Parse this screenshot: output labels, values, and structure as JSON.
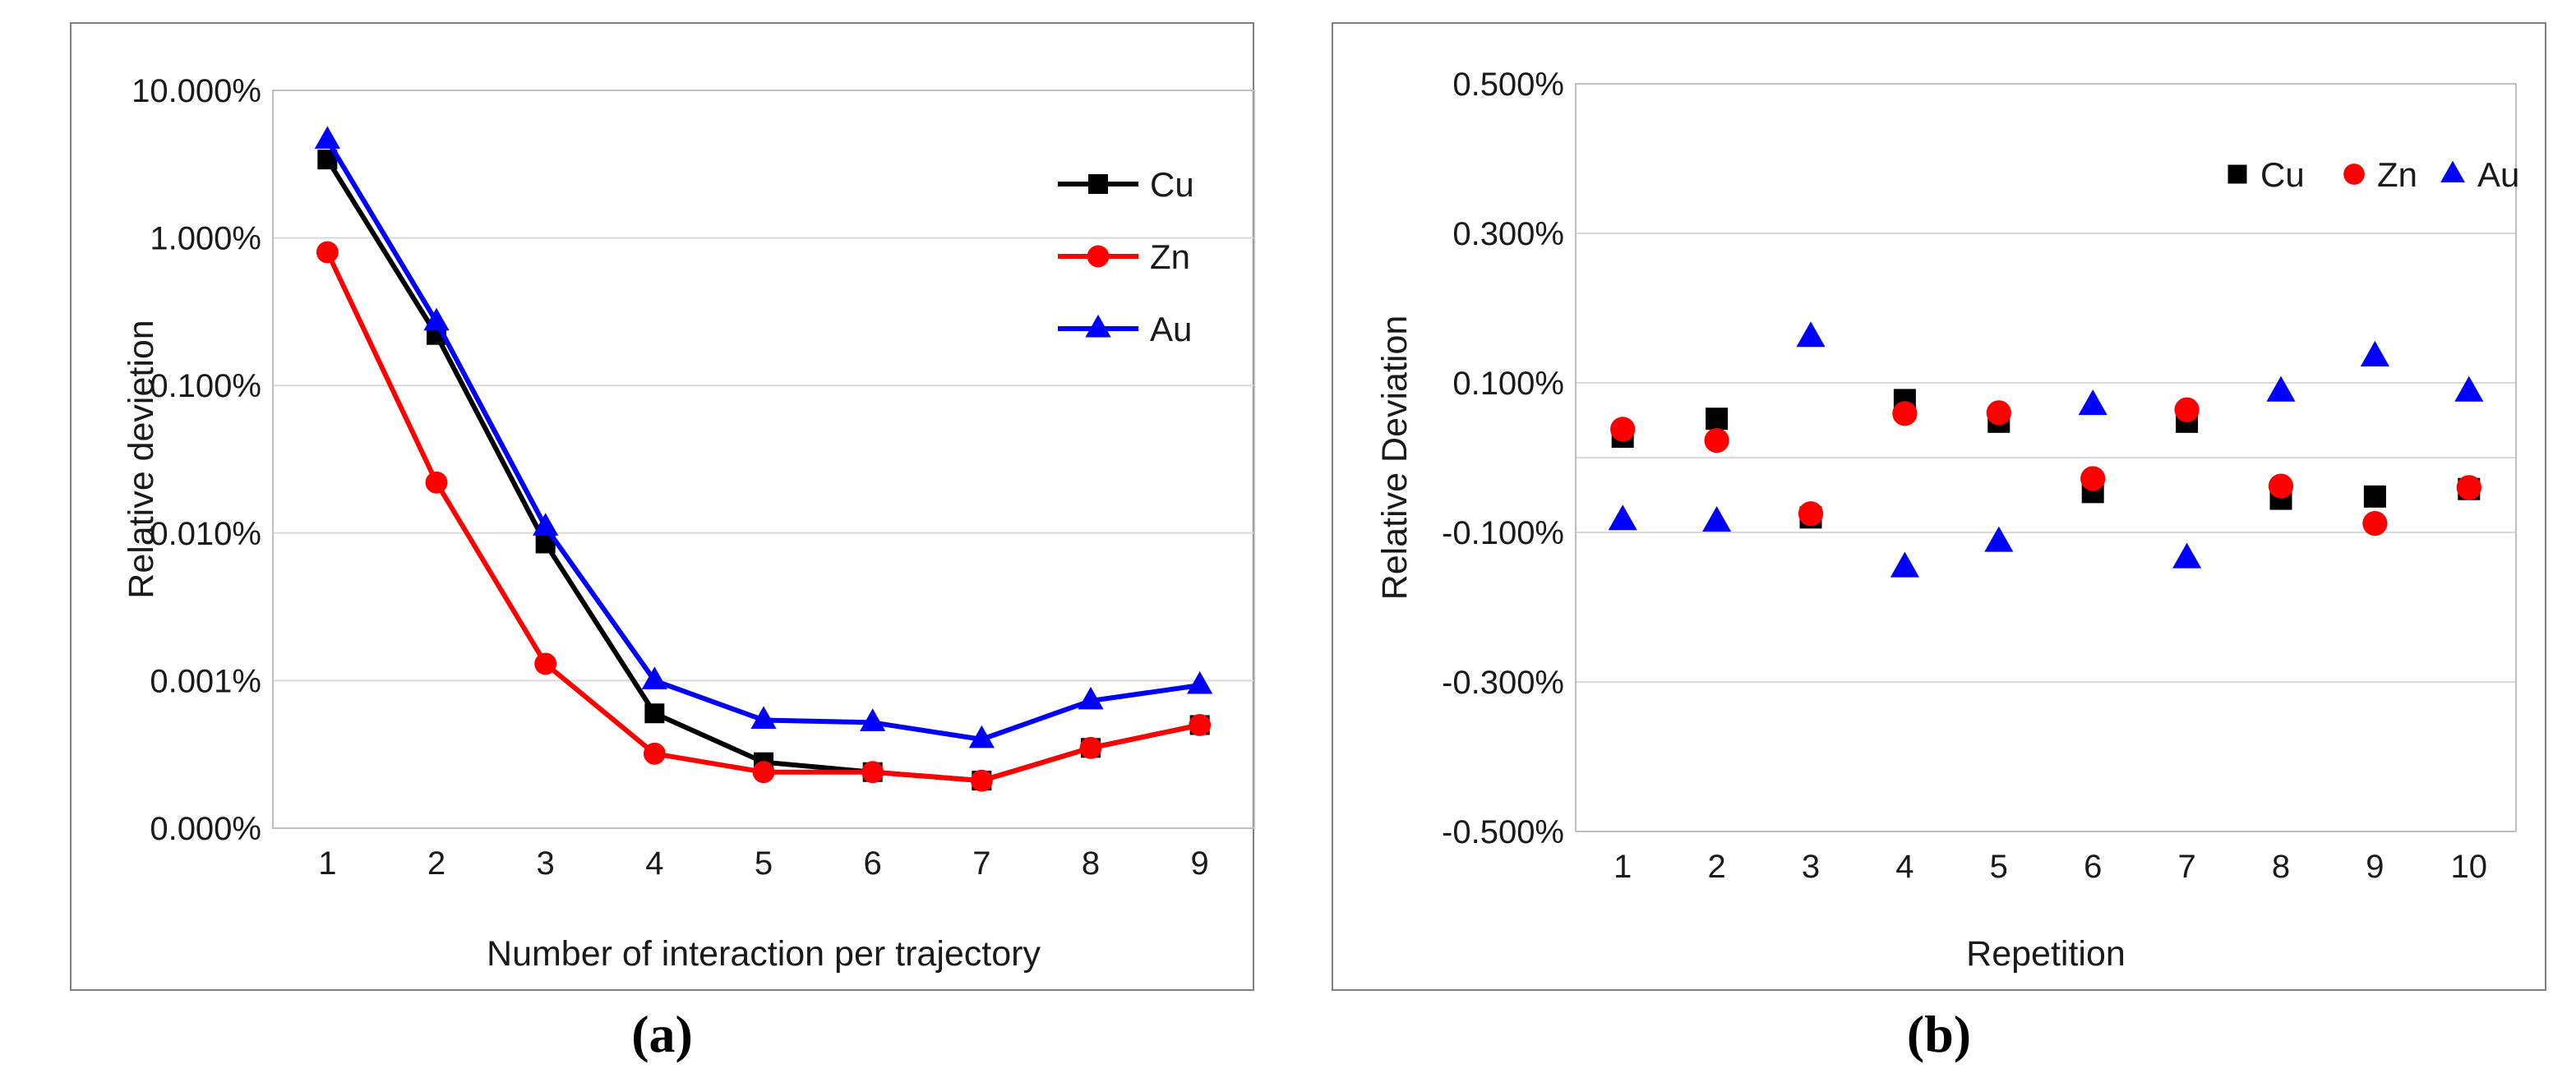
{
  "figure": {
    "caption_a": "(a)",
    "caption_b": "(b)"
  },
  "colors": {
    "series_cu": "#000000",
    "series_zn": "#ff0000",
    "series_au": "#0000ff",
    "gridline": "#d9d9d9",
    "plot_border": "#bfbfbf",
    "panel_border": "#7f7f7f",
    "text": "#1a1a1a"
  },
  "chart_data": [
    {
      "id": "a",
      "type": "line",
      "title": "",
      "xlabel": "Number of interaction per trajectory",
      "ylabel": "Relative devietion",
      "unit": "%",
      "y_scale": "log",
      "ylim_log": [
        10,
        0.0001
      ],
      "grid": true,
      "legend_position": "right-inside",
      "categories": [
        1,
        2,
        3,
        4,
        5,
        6,
        7,
        8,
        9
      ],
      "y_ticks": [
        {
          "label": "10.000%",
          "v": 10
        },
        {
          "label": "1.000%",
          "v": 1
        },
        {
          "label": "0.100%",
          "v": 0.1
        },
        {
          "label": "0.010%",
          "v": 0.01
        },
        {
          "label": "0.001%",
          "v": 0.001
        },
        {
          "label": "0.000%",
          "v": 0.0001
        }
      ],
      "series": [
        {
          "name": "Cu",
          "color": "#000000",
          "marker": "square",
          "values": [
            3.4,
            0.22,
            0.0085,
            0.0006,
            0.00028,
            0.00024,
            0.00021,
            0.00035,
            0.0005
          ]
        },
        {
          "name": "Zn",
          "color": "#ff0000",
          "marker": "circle",
          "values": [
            0.8,
            0.022,
            0.0013,
            0.00032,
            0.00024,
            0.00024,
            0.00021,
            0.00035,
            0.0005
          ]
        },
        {
          "name": "Au",
          "color": "#0000ff",
          "marker": "triangle",
          "values": [
            4.6,
            0.27,
            0.011,
            0.001,
            0.00054,
            0.00052,
            0.0004,
            0.00073,
            0.00093
          ]
        }
      ]
    },
    {
      "id": "b",
      "type": "scatter",
      "title": "",
      "xlabel": "Repetition",
      "ylabel": "Relative Deviation",
      "unit": "%",
      "y_scale": "linear",
      "ylim": [
        -0.5,
        0.5
      ],
      "grid": true,
      "zero_axis_line": true,
      "legend_position": "top-right-inside",
      "categories": [
        1,
        2,
        3,
        4,
        5,
        6,
        7,
        8,
        9,
        10
      ],
      "y_ticks": [
        {
          "label": "0.500%",
          "v": 0.5
        },
        {
          "label": "0.300%",
          "v": 0.3
        },
        {
          "label": "0.100%",
          "v": 0.1
        },
        {
          "label": "-0.100%",
          "v": -0.1
        },
        {
          "label": "-0.300%",
          "v": -0.3
        },
        {
          "label": "-0.500%",
          "v": -0.5
        }
      ],
      "series": [
        {
          "name": "Cu",
          "color": "#000000",
          "marker": "square",
          "values": [
            0.028,
            0.052,
            -0.08,
            0.077,
            0.048,
            -0.046,
            0.048,
            -0.055,
            -0.052,
            -0.042
          ]
        },
        {
          "name": "Zn",
          "color": "#ff0000",
          "marker": "circle",
          "values": [
            0.038,
            0.023,
            -0.075,
            0.059,
            0.06,
            -0.028,
            0.064,
            -0.038,
            -0.088,
            -0.04
          ]
        },
        {
          "name": "Au",
          "color": "#0000ff",
          "marker": "triangle",
          "values": [
            -0.084,
            -0.086,
            0.161,
            -0.147,
            -0.113,
            0.07,
            -0.135,
            0.088,
            0.135,
            0.088
          ]
        }
      ]
    }
  ]
}
